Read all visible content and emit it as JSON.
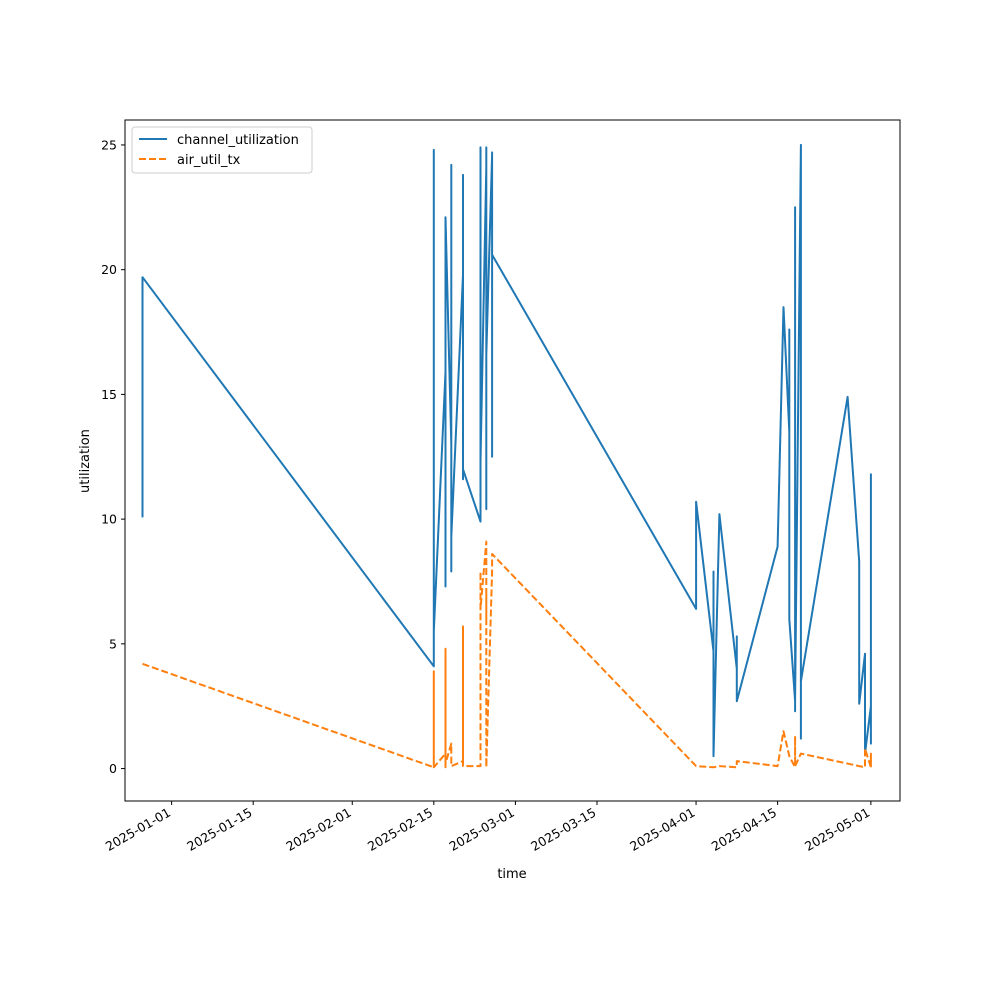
{
  "chart_data": {
    "type": "line",
    "title": "",
    "xlabel": "time",
    "ylabel": "utilization",
    "x_tick_labels": [
      "2025-01-01",
      "2025-01-15",
      "2025-02-01",
      "2025-02-15",
      "2025-03-01",
      "2025-03-15",
      "2025-04-01",
      "2025-04-15",
      "2025-05-01"
    ],
    "y_tick_labels": [
      "0",
      "5",
      "10",
      "15",
      "20",
      "25"
    ],
    "ylim": [
      -1.3,
      26.0
    ],
    "xlim": [
      "2024-12-24",
      "2025-05-06"
    ],
    "legend_position": "upper-left",
    "grid": false,
    "series": [
      {
        "name": "channel_utilization",
        "color": "#1f77b4",
        "dash": "solid",
        "points": [
          [
            "2024-12-27",
            14.2
          ],
          [
            "2024-12-27",
            10.1
          ],
          [
            "2024-12-27",
            19.7
          ],
          [
            "2025-02-15",
            4.1
          ],
          [
            "2025-02-15",
            24.8
          ],
          [
            "2025-02-15",
            5.5
          ],
          [
            "2025-02-17",
            15.9
          ],
          [
            "2025-02-17",
            7.3
          ],
          [
            "2025-02-17",
            22.1
          ],
          [
            "2025-02-18",
            13.0
          ],
          [
            "2025-02-18",
            23.2
          ],
          [
            "2025-02-18",
            7.9
          ],
          [
            "2025-02-18",
            24.2
          ],
          [
            "2025-02-18",
            9.3
          ],
          [
            "2025-02-20",
            19.8
          ],
          [
            "2025-02-20",
            11.6
          ],
          [
            "2025-02-20",
            23.8
          ],
          [
            "2025-02-20",
            12.0
          ],
          [
            "2025-02-23",
            9.9
          ],
          [
            "2025-02-23",
            24.9
          ],
          [
            "2025-02-23",
            12.3
          ],
          [
            "2025-02-24",
            24.1
          ],
          [
            "2025-02-24",
            10.4
          ],
          [
            "2025-02-24",
            24.9
          ],
          [
            "2025-02-24",
            16.6
          ],
          [
            "2025-02-25",
            24.6
          ],
          [
            "2025-02-25",
            12.5
          ],
          [
            "2025-02-25",
            24.7
          ],
          [
            "2025-02-25",
            17.2
          ],
          [
            "2025-02-25",
            24.7
          ],
          [
            "2025-02-25",
            20.6
          ],
          [
            "2025-04-01",
            6.4
          ],
          [
            "2025-04-01",
            10.7
          ],
          [
            "2025-04-04",
            4.7
          ],
          [
            "2025-04-04",
            7.9
          ],
          [
            "2025-04-04",
            0.5
          ],
          [
            "2025-04-05",
            10.2
          ],
          [
            "2025-04-08",
            4.0
          ],
          [
            "2025-04-08",
            5.3
          ],
          [
            "2025-04-08",
            2.7
          ],
          [
            "2025-04-15",
            8.9
          ],
          [
            "2025-04-16",
            18.5
          ],
          [
            "2025-04-17",
            13.5
          ],
          [
            "2025-04-17",
            17.6
          ],
          [
            "2025-04-17",
            6.0
          ],
          [
            "2025-04-18",
            2.7
          ],
          [
            "2025-04-18",
            22.5
          ],
          [
            "2025-04-18",
            2.3
          ],
          [
            "2025-04-18",
            21.9
          ],
          [
            "2025-04-18",
            2.8
          ],
          [
            "2025-04-19",
            25.0
          ],
          [
            "2025-04-19",
            1.2
          ],
          [
            "2025-04-19",
            3.5
          ],
          [
            "2025-04-27",
            14.9
          ],
          [
            "2025-04-29",
            8.3
          ],
          [
            "2025-04-29",
            2.6
          ],
          [
            "2025-04-30",
            4.6
          ],
          [
            "2025-04-30",
            0.6
          ],
          [
            "2025-05-01",
            2.5
          ],
          [
            "2025-05-01",
            6.9
          ],
          [
            "2025-05-01",
            1.0
          ],
          [
            "2025-05-01",
            11.8
          ],
          [
            "2025-05-01",
            2.9
          ],
          [
            "2025-05-01",
            7.1
          ],
          [
            "2025-05-01",
            3.0
          ]
        ]
      },
      {
        "name": "air_util_tx",
        "color": "#ff7f0e",
        "dash": "dashed",
        "points": [
          [
            "2024-12-27",
            4.2
          ],
          [
            "2025-02-15",
            0.05
          ],
          [
            "2025-02-15",
            3.9
          ],
          [
            "2025-02-15",
            0.05
          ],
          [
            "2025-02-17",
            0.6
          ],
          [
            "2025-02-17",
            0.05
          ],
          [
            "2025-02-17",
            4.8
          ],
          [
            "2025-02-17",
            0.2
          ],
          [
            "2025-02-18",
            1.0
          ],
          [
            "2025-02-18",
            0.1
          ],
          [
            "2025-02-20",
            0.3
          ],
          [
            "2025-02-20",
            5.7
          ],
          [
            "2025-02-20",
            0.1
          ],
          [
            "2025-02-23",
            0.1
          ],
          [
            "2025-02-23",
            7.9
          ],
          [
            "2025-02-23",
            6.4
          ],
          [
            "2025-02-24",
            9.1
          ],
          [
            "2025-02-24",
            6.0
          ],
          [
            "2025-02-24",
            7.0
          ],
          [
            "2025-02-24",
            0.05
          ],
          [
            "2025-02-25",
            7.9
          ],
          [
            "2025-02-25",
            8.6
          ],
          [
            "2025-04-01",
            0.1
          ],
          [
            "2025-04-04",
            0.05
          ],
          [
            "2025-04-05",
            0.1
          ],
          [
            "2025-04-08",
            0.05
          ],
          [
            "2025-04-08",
            0.3
          ],
          [
            "2025-04-15",
            0.1
          ],
          [
            "2025-04-16",
            1.5
          ],
          [
            "2025-04-17",
            0.5
          ],
          [
            "2025-04-18",
            0.05
          ],
          [
            "2025-04-18",
            1.3
          ],
          [
            "2025-04-18",
            0.1
          ],
          [
            "2025-04-19",
            0.6
          ],
          [
            "2025-04-29",
            0.1
          ],
          [
            "2025-04-30",
            0.05
          ],
          [
            "2025-04-30",
            0.8
          ],
          [
            "2025-05-01",
            0.05
          ],
          [
            "2025-05-01",
            0.6
          ],
          [
            "2025-05-01",
            0.05
          ]
        ]
      }
    ]
  }
}
